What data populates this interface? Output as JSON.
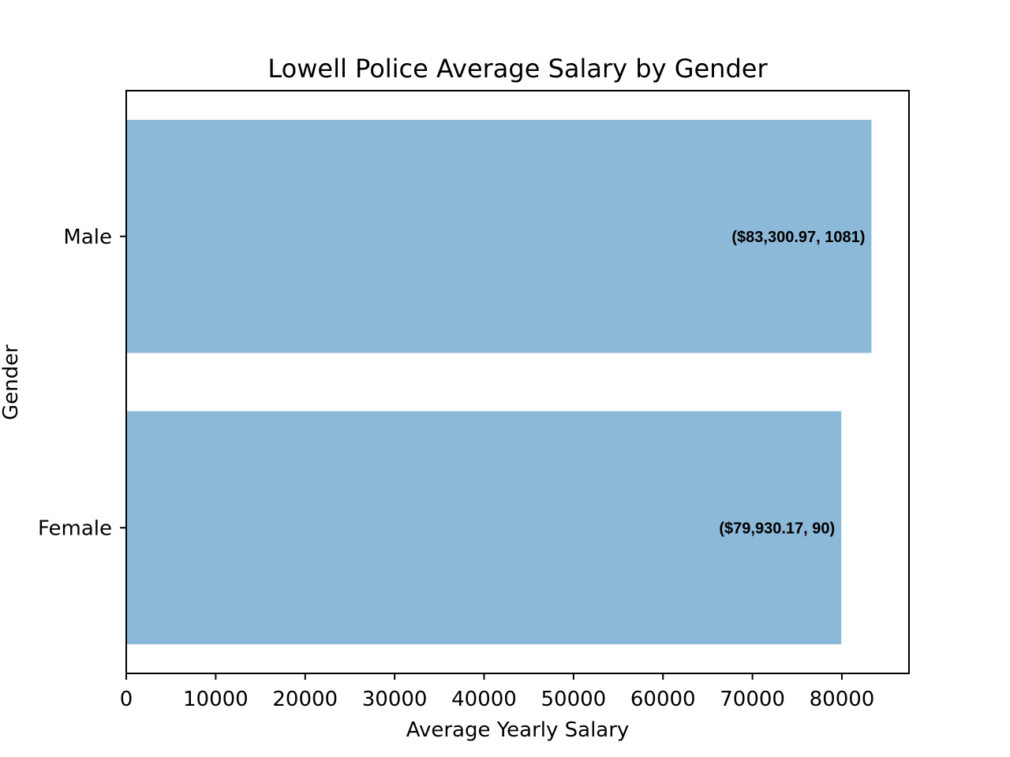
{
  "chart_data": {
    "type": "bar",
    "orientation": "horizontal",
    "title": "Lowell Police Average Salary by Gender",
    "xlabel": "Average Yearly Salary",
    "ylabel": "Gender",
    "categories": [
      "Female",
      "Male"
    ],
    "values": [
      79930.17,
      83300.97
    ],
    "data_labels": [
      "($79,930.17, 90)",
      "($83,300.97, 1081)"
    ],
    "xlim": [
      0,
      87500
    ],
    "xticks": [
      0,
      10000,
      20000,
      30000,
      40000,
      50000,
      60000,
      70000,
      80000
    ],
    "xtick_labels": [
      "0",
      "10000",
      "20000",
      "30000",
      "40000",
      "50000",
      "60000",
      "70000",
      "80000"
    ],
    "grid": false,
    "colors": {
      "bar": "#8db9d8",
      "axis": "#000000"
    }
  }
}
